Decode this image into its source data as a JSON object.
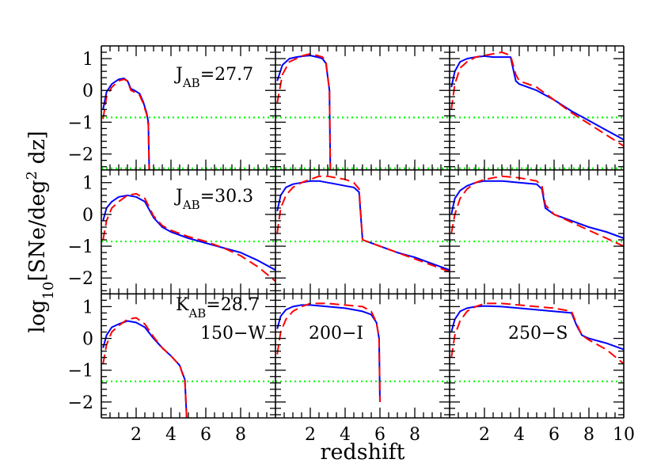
{
  "chart_data": {
    "type": "line",
    "layout": {
      "rows": 3,
      "cols": 3
    },
    "xlabel": "redshift",
    "ylabel": "log₁₀[SNe/deg² dz]",
    "ylabel_parts": {
      "pre": "log",
      "sub": "10",
      "mid": "[SNe/deg",
      "sup": "2",
      "post": " dz]"
    },
    "ylim": [
      -2.5,
      1.4
    ],
    "y_ticks": [
      1,
      0,
      -1,
      -2
    ],
    "y_tick_labels": [
      "1",
      "0",
      "−1",
      "−2"
    ],
    "x_tick_labels": [
      {
        "v": 2,
        "label": "2"
      },
      {
        "v": 4,
        "label": "4"
      },
      {
        "v": 6,
        "label": "6"
      },
      {
        "v": 8,
        "label": "8"
      },
      {
        "v": 10,
        "label": "10"
      }
    ],
    "series_style": [
      {
        "key": "solid",
        "color": "#0000ff",
        "dash": "none"
      },
      {
        "key": "dashed",
        "color": "#ff0000",
        "dash": "12 6"
      }
    ],
    "threshold_color": "#00ff00",
    "annotations": [
      {
        "row": 0,
        "col": 0,
        "pre": "J",
        "sub": "AB",
        "post": "=27.7"
      },
      {
        "row": 1,
        "col": 0,
        "pre": "J",
        "sub": "AB",
        "post": "=30.3"
      },
      {
        "row": 2,
        "col": 0,
        "pre": "K",
        "sub": "AB",
        "post": "=28.7"
      },
      {
        "row": 2,
        "col": 0,
        "text": "150−W"
      },
      {
        "row": 2,
        "col": 1,
        "text": "200−I"
      },
      {
        "row": 2,
        "col": 2,
        "text": "250−S"
      }
    ],
    "panels": [
      {
        "row": 0,
        "col": 0,
        "solid": [
          [
            0.1,
            -0.6
          ],
          [
            0.3,
            -0.05
          ],
          [
            0.6,
            0.2
          ],
          [
            1.0,
            0.35
          ],
          [
            1.3,
            0.38
          ],
          [
            1.5,
            0.3
          ],
          [
            1.7,
            0.05
          ],
          [
            1.9,
            0.0
          ],
          [
            2.2,
            -0.1
          ],
          [
            2.4,
            -0.35
          ],
          [
            2.6,
            -0.7
          ],
          [
            2.7,
            -1.0
          ],
          [
            2.75,
            -2.5
          ]
        ],
        "dashed": [
          [
            0.1,
            -0.9
          ],
          [
            0.3,
            -0.2
          ],
          [
            0.6,
            0.1
          ],
          [
            1.0,
            0.3
          ],
          [
            1.3,
            0.35
          ],
          [
            1.5,
            0.3
          ],
          [
            1.7,
            0.0
          ],
          [
            1.9,
            -0.05
          ],
          [
            2.2,
            -0.15
          ],
          [
            2.4,
            -0.4
          ],
          [
            2.6,
            -0.75
          ],
          [
            2.7,
            -1.1
          ],
          [
            2.75,
            -2.5
          ]
        ],
        "thresholds": [
          -0.85,
          -2.45
        ]
      },
      {
        "row": 0,
        "col": 1,
        "solid": [
          [
            0.1,
            0.3
          ],
          [
            0.4,
            0.8
          ],
          [
            0.8,
            1.0
          ],
          [
            1.2,
            1.05
          ],
          [
            1.6,
            1.08
          ],
          [
            2.0,
            1.1
          ],
          [
            2.4,
            1.05
          ],
          [
            2.7,
            1.0
          ],
          [
            2.9,
            0.85
          ],
          [
            3.1,
            0.0
          ],
          [
            3.15,
            -2.5
          ]
        ],
        "dashed": [
          [
            0.1,
            -0.4
          ],
          [
            0.4,
            0.5
          ],
          [
            0.8,
            0.9
          ],
          [
            1.2,
            1.0
          ],
          [
            1.6,
            1.1
          ],
          [
            2.0,
            1.15
          ],
          [
            2.4,
            1.1
          ],
          [
            2.7,
            1.05
          ],
          [
            2.9,
            0.9
          ],
          [
            3.1,
            0.0
          ],
          [
            3.15,
            -2.5
          ]
        ],
        "thresholds": [
          -0.85,
          -2.45
        ]
      },
      {
        "row": 0,
        "col": 2,
        "solid": [
          [
            0.1,
            0.1
          ],
          [
            0.3,
            0.6
          ],
          [
            0.6,
            0.9
          ],
          [
            1.0,
            1.0
          ],
          [
            1.5,
            1.05
          ],
          [
            2.0,
            1.08
          ],
          [
            2.5,
            1.05
          ],
          [
            3.0,
            1.05
          ],
          [
            3.5,
            1.05
          ],
          [
            3.8,
            0.3
          ],
          [
            4.0,
            0.2
          ],
          [
            5.0,
            0.0
          ],
          [
            6.0,
            -0.3
          ],
          [
            7.0,
            -0.65
          ],
          [
            8.0,
            -0.95
          ],
          [
            9.0,
            -1.25
          ],
          [
            10.0,
            -1.55
          ]
        ],
        "dashed": [
          [
            0.1,
            -0.6
          ],
          [
            0.3,
            0.2
          ],
          [
            0.6,
            0.7
          ],
          [
            1.0,
            0.9
          ],
          [
            1.5,
            1.05
          ],
          [
            2.0,
            1.1
          ],
          [
            2.5,
            1.15
          ],
          [
            3.0,
            1.2
          ],
          [
            3.5,
            1.1
          ],
          [
            3.8,
            0.5
          ],
          [
            4.0,
            0.3
          ],
          [
            5.0,
            0.1
          ],
          [
            6.0,
            -0.3
          ],
          [
            7.0,
            -0.7
          ],
          [
            8.0,
            -1.05
          ],
          [
            9.0,
            -1.4
          ],
          [
            10.0,
            -1.75
          ]
        ],
        "thresholds": [
          -0.85,
          -2.45
        ]
      },
      {
        "row": 1,
        "col": 0,
        "solid": [
          [
            0.1,
            -0.2
          ],
          [
            0.3,
            0.2
          ],
          [
            0.6,
            0.4
          ],
          [
            1.0,
            0.55
          ],
          [
            1.5,
            0.6
          ],
          [
            2.0,
            0.55
          ],
          [
            2.5,
            0.4
          ],
          [
            3.0,
            -0.1
          ],
          [
            3.5,
            -0.4
          ],
          [
            4.0,
            -0.55
          ],
          [
            5.0,
            -0.75
          ],
          [
            6.0,
            -0.9
          ],
          [
            7.0,
            -1.05
          ],
          [
            8.0,
            -1.2
          ],
          [
            9.0,
            -1.45
          ],
          [
            10.0,
            -1.75
          ]
        ],
        "dashed": [
          [
            0.1,
            -0.8
          ],
          [
            0.3,
            -0.2
          ],
          [
            0.6,
            0.2
          ],
          [
            1.0,
            0.4
          ],
          [
            1.5,
            0.6
          ],
          [
            2.0,
            0.65
          ],
          [
            2.5,
            0.5
          ],
          [
            3.0,
            -0.05
          ],
          [
            3.5,
            -0.35
          ],
          [
            4.0,
            -0.5
          ],
          [
            5.0,
            -0.7
          ],
          [
            6.0,
            -0.85
          ],
          [
            7.0,
            -1.05
          ],
          [
            8.0,
            -1.3
          ],
          [
            9.0,
            -1.65
          ],
          [
            10.0,
            -2.1
          ]
        ],
        "thresholds": [
          -0.85
        ]
      },
      {
        "row": 1,
        "col": 1,
        "solid": [
          [
            0.1,
            0.1
          ],
          [
            0.3,
            0.6
          ],
          [
            0.6,
            0.85
          ],
          [
            1.0,
            0.95
          ],
          [
            1.5,
            1.0
          ],
          [
            2.0,
            1.05
          ],
          [
            2.5,
            1.05
          ],
          [
            3.0,
            1.0
          ],
          [
            3.5,
            0.95
          ],
          [
            4.0,
            0.9
          ],
          [
            4.5,
            0.85
          ],
          [
            4.8,
            0.7
          ],
          [
            5.0,
            -0.8
          ],
          [
            5.5,
            -0.9
          ],
          [
            6.0,
            -1.0
          ],
          [
            7.0,
            -1.2
          ],
          [
            8.0,
            -1.35
          ],
          [
            9.0,
            -1.55
          ],
          [
            10.0,
            -1.75
          ]
        ],
        "dashed": [
          [
            0.1,
            -0.6
          ],
          [
            0.3,
            0.2
          ],
          [
            0.6,
            0.6
          ],
          [
            1.0,
            0.85
          ],
          [
            1.5,
            1.0
          ],
          [
            2.0,
            1.1
          ],
          [
            2.5,
            1.2
          ],
          [
            3.0,
            1.2
          ],
          [
            3.5,
            1.15
          ],
          [
            4.0,
            1.1
          ],
          [
            4.5,
            1.0
          ],
          [
            4.8,
            0.8
          ],
          [
            5.0,
            -0.8
          ],
          [
            5.5,
            -0.9
          ],
          [
            6.0,
            -1.0
          ],
          [
            7.0,
            -1.2
          ],
          [
            8.0,
            -1.4
          ],
          [
            9.0,
            -1.6
          ],
          [
            10.0,
            -1.8
          ]
        ],
        "thresholds": [
          -0.85
        ]
      },
      {
        "row": 1,
        "col": 2,
        "solid": [
          [
            0.1,
            0.0
          ],
          [
            0.3,
            0.5
          ],
          [
            0.6,
            0.75
          ],
          [
            1.0,
            0.9
          ],
          [
            1.5,
            1.0
          ],
          [
            2.0,
            1.05
          ],
          [
            3.0,
            1.05
          ],
          [
            4.0,
            1.0
          ],
          [
            5.0,
            0.95
          ],
          [
            5.3,
            0.8
          ],
          [
            5.5,
            0.2
          ],
          [
            6.0,
            0.0
          ],
          [
            7.0,
            -0.2
          ],
          [
            8.0,
            -0.4
          ],
          [
            9.0,
            -0.55
          ],
          [
            10.0,
            -0.75
          ]
        ],
        "dashed": [
          [
            0.1,
            -0.6
          ],
          [
            0.3,
            0.0
          ],
          [
            0.6,
            0.5
          ],
          [
            1.0,
            0.8
          ],
          [
            1.5,
            1.0
          ],
          [
            2.0,
            1.1
          ],
          [
            3.0,
            1.2
          ],
          [
            4.0,
            1.15
          ],
          [
            5.0,
            1.05
          ],
          [
            5.3,
            0.9
          ],
          [
            5.5,
            0.3
          ],
          [
            6.0,
            0.0
          ],
          [
            7.0,
            -0.25
          ],
          [
            8.0,
            -0.5
          ],
          [
            9.0,
            -0.75
          ],
          [
            10.0,
            -1.0
          ]
        ],
        "thresholds": [
          -0.85
        ]
      },
      {
        "row": 2,
        "col": 0,
        "solid": [
          [
            0.1,
            -0.3
          ],
          [
            0.3,
            0.1
          ],
          [
            0.6,
            0.35
          ],
          [
            1.0,
            0.45
          ],
          [
            1.5,
            0.55
          ],
          [
            2.0,
            0.5
          ],
          [
            2.5,
            0.35
          ],
          [
            3.0,
            0.0
          ],
          [
            3.5,
            -0.3
          ],
          [
            4.0,
            -0.55
          ],
          [
            4.5,
            -0.85
          ],
          [
            4.8,
            -1.3
          ],
          [
            4.9,
            -2.5
          ]
        ],
        "dashed": [
          [
            0.1,
            -0.8
          ],
          [
            0.3,
            -0.2
          ],
          [
            0.6,
            0.2
          ],
          [
            1.0,
            0.4
          ],
          [
            1.5,
            0.6
          ],
          [
            2.0,
            0.65
          ],
          [
            2.5,
            0.45
          ],
          [
            3.0,
            0.05
          ],
          [
            3.5,
            -0.3
          ],
          [
            4.0,
            -0.55
          ],
          [
            4.5,
            -0.85
          ],
          [
            4.8,
            -1.35
          ],
          [
            4.9,
            -2.5
          ]
        ],
        "thresholds": [
          -1.35
        ]
      },
      {
        "row": 2,
        "col": 1,
        "solid": [
          [
            0.1,
            0.3
          ],
          [
            0.3,
            0.7
          ],
          [
            0.6,
            0.9
          ],
          [
            1.0,
            1.0
          ],
          [
            1.5,
            1.05
          ],
          [
            2.0,
            1.05
          ],
          [
            3.0,
            1.0
          ],
          [
            4.0,
            0.95
          ],
          [
            5.0,
            0.85
          ],
          [
            5.5,
            0.75
          ],
          [
            5.8,
            0.5
          ],
          [
            5.95,
            0.0
          ],
          [
            6.0,
            -2.0
          ]
        ],
        "dashed": [
          [
            0.1,
            -0.5
          ],
          [
            0.3,
            0.2
          ],
          [
            0.6,
            0.6
          ],
          [
            1.0,
            0.85
          ],
          [
            1.5,
            1.0
          ],
          [
            2.0,
            1.1
          ],
          [
            3.0,
            1.1
          ],
          [
            4.0,
            1.05
          ],
          [
            5.0,
            1.0
          ],
          [
            5.5,
            0.85
          ],
          [
            5.8,
            0.5
          ],
          [
            5.95,
            0.0
          ],
          [
            6.0,
            -2.0
          ]
        ],
        "thresholds": [
          -1.35
        ]
      },
      {
        "row": 2,
        "col": 2,
        "solid": [
          [
            0.1,
            0.2
          ],
          [
            0.3,
            0.6
          ],
          [
            0.6,
            0.85
          ],
          [
            1.0,
            0.95
          ],
          [
            1.5,
            1.0
          ],
          [
            2.0,
            1.02
          ],
          [
            3.0,
            1.0
          ],
          [
            4.0,
            0.95
          ],
          [
            5.0,
            0.9
          ],
          [
            6.0,
            0.85
          ],
          [
            7.0,
            0.8
          ],
          [
            7.3,
            0.4
          ],
          [
            7.6,
            0.1
          ],
          [
            8.0,
            0.0
          ],
          [
            9.0,
            -0.15
          ],
          [
            10.0,
            -0.35
          ]
        ],
        "dashed": [
          [
            0.1,
            -0.6
          ],
          [
            0.3,
            0.1
          ],
          [
            0.6,
            0.55
          ],
          [
            1.0,
            0.85
          ],
          [
            1.5,
            1.0
          ],
          [
            2.0,
            1.1
          ],
          [
            3.0,
            1.1
          ],
          [
            4.0,
            1.05
          ],
          [
            5.0,
            1.0
          ],
          [
            6.0,
            0.95
          ],
          [
            7.0,
            0.85
          ],
          [
            7.3,
            0.45
          ],
          [
            7.6,
            0.1
          ],
          [
            8.0,
            -0.05
          ],
          [
            9.0,
            -0.35
          ],
          [
            10.0,
            -0.8
          ]
        ],
        "thresholds": [
          -1.35
        ]
      }
    ]
  }
}
